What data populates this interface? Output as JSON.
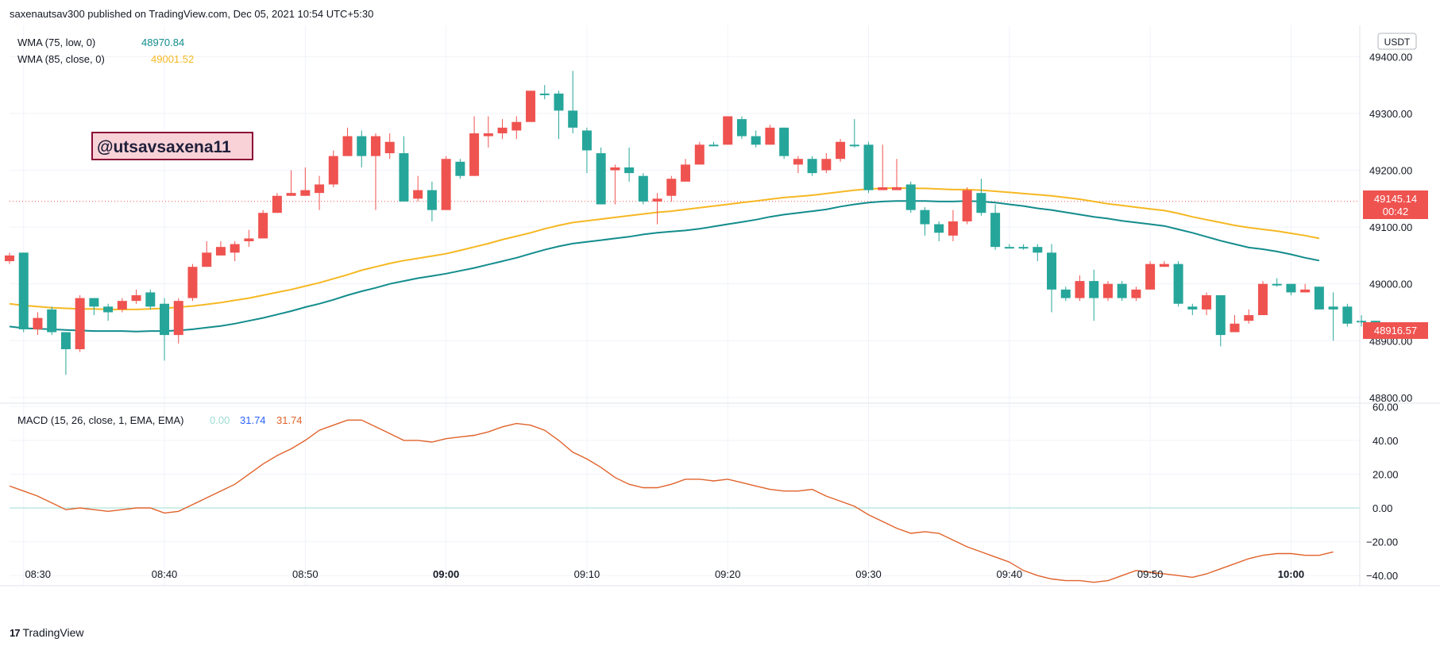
{
  "header": {
    "publish_line": "saxenautsav300 published on TradingView.com, Dec 05, 2021 10:54 UTC+5:30"
  },
  "footer": {
    "brand": "TradingView",
    "logo_glyph": "17"
  },
  "currency_badge": "USDT",
  "watermark": "@utsavsaxena11",
  "colors": {
    "up": "#26a69a",
    "down": "#ef5350",
    "wma75": "#138c8c",
    "wma85": "#f6b823",
    "macd": "#e0622a",
    "signal_zero": "#9fdcd2"
  },
  "legend": {
    "wma75": {
      "label": "WMA (75, low, 0)",
      "value": "48970.84"
    },
    "wma85": {
      "label": "WMA (85, close, 0)",
      "value": "49001.52"
    },
    "macd": {
      "label": "MACD (15, 26, close, 1, EMA, EMA)",
      "v1": "0.00",
      "v2": "31.74",
      "v3": "31.74"
    }
  },
  "price_tags": {
    "last": {
      "price": "48916.57"
    },
    "line": {
      "price": "49145.14",
      "countdown": "00:42"
    }
  },
  "chart_data": [
    {
      "type": "candlestick",
      "interval_minutes": 1,
      "x_ticks": [
        "08:30",
        "08:40",
        "08:50",
        "09:00",
        "09:10",
        "09:20",
        "09:30",
        "09:40",
        "09:50",
        "10:00"
      ],
      "bold_ticks": [
        "09:00",
        "10:00"
      ],
      "y_ticks": [
        48800,
        48900,
        49000,
        49100,
        49200,
        49300,
        49400
      ],
      "ylim": [
        48790,
        49455
      ],
      "grid": true,
      "candles": [
        [
          "08:29",
          49050,
          49055,
          49035,
          49040
        ],
        [
          "08:30",
          48920,
          49055,
          48915,
          49055
        ],
        [
          "08:31",
          48940,
          48950,
          48910,
          48920
        ],
        [
          "08:32",
          48915,
          48960,
          48910,
          48955
        ],
        [
          "08:33",
          48885,
          48915,
          48840,
          48915
        ],
        [
          "08:34",
          48975,
          48980,
          48880,
          48885
        ],
        [
          "08:35",
          48960,
          48975,
          48945,
          48975
        ],
        [
          "08:36",
          48950,
          48965,
          48935,
          48960
        ],
        [
          "08:37",
          48970,
          48975,
          48950,
          48955
        ],
        [
          "08:38",
          48980,
          48990,
          48965,
          48970
        ],
        [
          "08:39",
          48960,
          48990,
          48955,
          48985
        ],
        [
          "08:40",
          48910,
          48975,
          48865,
          48965
        ],
        [
          "08:41",
          48970,
          48975,
          48895,
          48910
        ],
        [
          "08:42",
          49030,
          49035,
          48970,
          48975
        ],
        [
          "08:43",
          49055,
          49075,
          49030,
          49030
        ],
        [
          "08:44",
          49065,
          49075,
          49050,
          49050
        ],
        [
          "08:45",
          49070,
          49075,
          49040,
          49055
        ],
        [
          "08:46",
          49080,
          49095,
          49065,
          49075
        ],
        [
          "08:47",
          49125,
          49130,
          49080,
          49080
        ],
        [
          "08:48",
          49155,
          49160,
          49125,
          49125
        ],
        [
          "08:49",
          49160,
          49200,
          49155,
          49155
        ],
        [
          "08:50",
          49165,
          49205,
          49155,
          49155
        ],
        [
          "08:51",
          49175,
          49190,
          49130,
          49160
        ],
        [
          "08:52",
          49225,
          49235,
          49170,
          49175
        ],
        [
          "08:53",
          49260,
          49275,
          49225,
          49225
        ],
        [
          "08:54",
          49225,
          49270,
          49205,
          49260
        ],
        [
          "08:55",
          49260,
          49265,
          49130,
          49225
        ],
        [
          "08:56",
          49250,
          49265,
          49220,
          49230
        ],
        [
          "08:57",
          49145,
          49260,
          49145,
          49230
        ],
        [
          "08:58",
          49165,
          49190,
          49145,
          49150
        ],
        [
          "08:59",
          49130,
          49180,
          49110,
          49165
        ],
        [
          "09:00",
          49220,
          49225,
          49130,
          49130
        ],
        [
          "09:01",
          49190,
          49220,
          49185,
          49215
        ],
        [
          "09:02",
          49265,
          49295,
          49190,
          49190
        ],
        [
          "09:03",
          49265,
          49295,
          49240,
          49260
        ],
        [
          "09:04",
          49275,
          49290,
          49255,
          49265
        ],
        [
          "09:05",
          49285,
          49295,
          49255,
          49270
        ],
        [
          "09:06",
          49340,
          49340,
          49285,
          49285
        ],
        [
          "09:07",
          49335,
          49350,
          49325,
          49335
        ],
        [
          "09:08",
          49305,
          49340,
          49255,
          49335
        ],
        [
          "09:09",
          49275,
          49375,
          49265,
          49305
        ],
        [
          "09:10",
          49235,
          49275,
          49195,
          49270
        ],
        [
          "09:11",
          49140,
          49240,
          49140,
          49230
        ],
        [
          "09:12",
          49205,
          49210,
          49140,
          49200
        ],
        [
          "09:13",
          49195,
          49240,
          49180,
          49205
        ],
        [
          "09:14",
          49145,
          49195,
          49140,
          49190
        ],
        [
          "09:15",
          49150,
          49160,
          49105,
          49145
        ],
        [
          "09:16",
          49185,
          49190,
          49145,
          49155
        ],
        [
          "09:17",
          49210,
          49220,
          49180,
          49180
        ],
        [
          "09:18",
          49245,
          49250,
          49210,
          49210
        ],
        [
          "09:19",
          49245,
          49250,
          49245,
          49245
        ],
        [
          "09:20",
          49295,
          49295,
          49245,
          49245
        ],
        [
          "09:21",
          49260,
          49295,
          49255,
          49290
        ],
        [
          "09:22",
          49245,
          49270,
          49240,
          49260
        ],
        [
          "09:23",
          49275,
          49280,
          49245,
          49245
        ],
        [
          "09:24",
          49225,
          49275,
          49220,
          49275
        ],
        [
          "09:25",
          49220,
          49225,
          49195,
          49210
        ],
        [
          "09:26",
          49195,
          49225,
          49190,
          49220
        ],
        [
          "09:27",
          49220,
          49230,
          49195,
          49200
        ],
        [
          "09:28",
          49250,
          49255,
          49215,
          49220
        ],
        [
          "09:29",
          49245,
          49290,
          49240,
          49245
        ],
        [
          "09:30",
          49165,
          49250,
          49160,
          49245
        ],
        [
          "09:31",
          49170,
          49245,
          49165,
          49165
        ],
        [
          "09:32",
          49170,
          49220,
          49165,
          49165
        ],
        [
          "09:33",
          49130,
          49180,
          49125,
          49175
        ],
        [
          "09:34",
          49105,
          49135,
          49085,
          49130
        ],
        [
          "09:35",
          49090,
          49110,
          49075,
          49105
        ],
        [
          "09:36",
          49110,
          49130,
          49075,
          49085
        ],
        [
          "09:37",
          49165,
          49170,
          49105,
          49110
        ],
        [
          "09:38",
          49125,
          49185,
          49120,
          49160
        ],
        [
          "09:39",
          49065,
          49140,
          49060,
          49125
        ],
        [
          "09:40",
          49065,
          49070,
          49065,
          49065
        ],
        [
          "09:41",
          49065,
          49070,
          49060,
          49065
        ],
        [
          "09:42",
          49055,
          49070,
          49040,
          49065
        ],
        [
          "09:43",
          48990,
          49070,
          48950,
          49055
        ],
        [
          "09:44",
          48975,
          48995,
          48970,
          48990
        ],
        [
          "09:45",
          49005,
          49015,
          48970,
          48975
        ],
        [
          "09:46",
          48975,
          49025,
          48935,
          49005
        ],
        [
          "09:47",
          49000,
          49005,
          48970,
          48975
        ],
        [
          "09:48",
          48975,
          49005,
          48970,
          49000
        ],
        [
          "09:49",
          48990,
          48995,
          48970,
          48975
        ],
        [
          "09:50",
          49035,
          49040,
          48990,
          48990
        ],
        [
          "09:51",
          49035,
          49040,
          49030,
          49030
        ],
        [
          "09:52",
          48965,
          49040,
          48960,
          49035
        ],
        [
          "09:53",
          48955,
          48965,
          48945,
          48960
        ],
        [
          "09:54",
          48980,
          48985,
          48945,
          48955
        ],
        [
          "09:55",
          48910,
          48980,
          48890,
          48980
        ],
        [
          "09:56",
          48930,
          48945,
          48915,
          48915
        ],
        [
          "09:57",
          48945,
          48955,
          48930,
          48935
        ],
        [
          "09:58",
          49000,
          49005,
          48945,
          48945
        ],
        [
          "09:59",
          49000,
          49010,
          48995,
          49000
        ],
        [
          "10:00",
          48985,
          49000,
          48980,
          49000
        ],
        [
          "10:01",
          48990,
          49000,
          48985,
          48985
        ],
        [
          "10:02",
          48955,
          48995,
          48955,
          48995
        ],
        [
          "10:03",
          48955,
          48985,
          48900,
          48960
        ],
        [
          "10:04",
          48930,
          48965,
          48925,
          48960
        ],
        [
          "10:05",
          48935,
          48945,
          48925,
          48935
        ],
        [
          "10:06",
          48925,
          48935,
          48910,
          48935
        ]
      ],
      "series": [
        {
          "legend_key": "wma75",
          "values": [
            48925,
            48922,
            48921,
            48920,
            48919,
            48918,
            48917,
            48917,
            48917,
            48916,
            48917,
            48917,
            48918,
            48920,
            48923,
            48926,
            48930,
            48935,
            48940,
            48946,
            48952,
            48959,
            48965,
            48972,
            48980,
            48987,
            48993,
            49000,
            49005,
            49010,
            49014,
            49018,
            49023,
            49028,
            49034,
            49040,
            49046,
            49053,
            49060,
            49066,
            49071,
            49074,
            49077,
            49080,
            49083,
            49087,
            49090,
            49092,
            49094,
            49097,
            49101,
            49105,
            49109,
            49113,
            49118,
            49122,
            49125,
            49128,
            49131,
            49136,
            49140,
            49143,
            49145,
            49146,
            49146,
            49146,
            49145,
            49145,
            49146,
            49145,
            49143,
            49140,
            49137,
            49133,
            49130,
            49126,
            49122,
            49118,
            49115,
            49111,
            49108,
            49105,
            49102,
            49096,
            49090,
            49083,
            49076,
            49070,
            49064,
            49061,
            49057,
            49052,
            49046,
            49041
          ]
        },
        {
          "legend_key": "wma85",
          "values": [
            48965,
            48962,
            48960,
            48958,
            48957,
            48956,
            48956,
            48955,
            48955,
            48955,
            48956,
            48957,
            48959,
            48961,
            48964,
            48967,
            48971,
            48975,
            48980,
            48985,
            48990,
            48996,
            49002,
            49009,
            49016,
            49024,
            49030,
            49036,
            49041,
            49045,
            49049,
            49053,
            49059,
            49065,
            49071,
            49078,
            49084,
            49090,
            49097,
            49103,
            49108,
            49111,
            49114,
            49117,
            49120,
            49123,
            49126,
            49128,
            49131,
            49134,
            49137,
            49140,
            49143,
            49146,
            49149,
            49152,
            49154,
            49156,
            49159,
            49162,
            49165,
            49167,
            49168,
            49169,
            49168,
            49168,
            49167,
            49166,
            49166,
            49165,
            49163,
            49161,
            49159,
            49157,
            49155,
            49152,
            49149,
            49145,
            49141,
            49138,
            49135,
            49132,
            49129,
            49124,
            49118,
            49113,
            49108,
            49103,
            49099,
            49096,
            49093,
            49089,
            49085,
            49080
          ]
        }
      ]
    },
    {
      "type": "line",
      "x_ticks": [
        "08:30",
        "08:40",
        "08:50",
        "09:00",
        "09:10",
        "09:20",
        "09:30",
        "09:40",
        "09:50",
        "10:00"
      ],
      "y_ticks": [
        -40,
        -20,
        0,
        20,
        40,
        60
      ],
      "ylim": [
        -46,
        62
      ],
      "grid": true,
      "zero_line": true,
      "series": [
        {
          "legend_key": "macd",
          "values": [
            13,
            10,
            7,
            3,
            -1,
            0,
            -1,
            -2,
            -1,
            0,
            0,
            -3,
            -2,
            2,
            6,
            10,
            14,
            20,
            26,
            31,
            35,
            40,
            46,
            49,
            52,
            52,
            48,
            44,
            40,
            40,
            39,
            41,
            42,
            43,
            45,
            48,
            50,
            49,
            46,
            40,
            33,
            29,
            24,
            18,
            14,
            12,
            12,
            14,
            17,
            17,
            16,
            17,
            15,
            13,
            11,
            10,
            10,
            11,
            7,
            4,
            1,
            -4,
            -8,
            -12,
            -15,
            -14,
            -15,
            -19,
            -23,
            -26,
            -29,
            -32,
            -37,
            -40,
            -42,
            -43,
            -43,
            -44,
            -43,
            -40,
            -37,
            -38,
            -39,
            -40,
            -41,
            -39,
            -36,
            -33,
            -30,
            -28,
            -27,
            -27,
            -28,
            -28,
            -26
          ]
        }
      ]
    }
  ]
}
